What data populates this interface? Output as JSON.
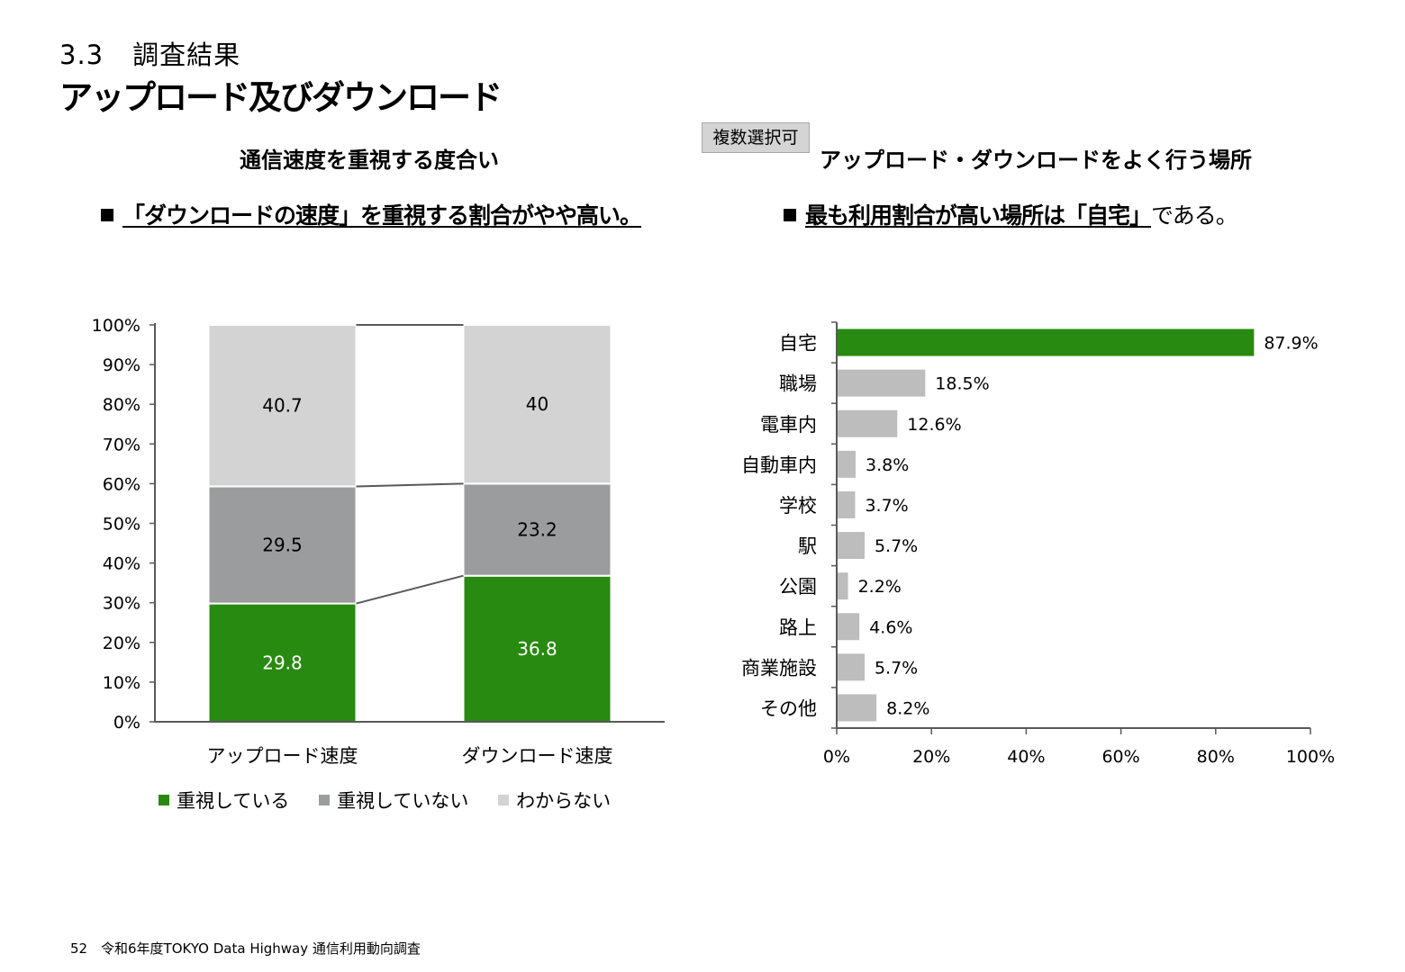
{
  "header": {
    "section_number": "3.3",
    "section_title": "調査結果",
    "page_title": "アップロード及びダウンロード"
  },
  "badge": {
    "label": "複数選択可"
  },
  "left_panel": {
    "title": "通信速度を重視する度合い",
    "message": {
      "underlined": "「ダウンロードの速度」を重視する割合がやや高い。"
    }
  },
  "right_panel": {
    "title": "アップロード・ダウンロードをよく行う場所",
    "message": {
      "underlined": "最も利用割合が高い場所は「自宅」",
      "plain": "である。"
    }
  },
  "legend": {
    "items": [
      "重視している",
      "重視していない",
      "わからない"
    ]
  },
  "footer": {
    "page_number": "52",
    "text": "令和6年度TOKYO Data Highway 通信利用動向調査"
  },
  "chart_data": [
    {
      "type": "bar",
      "stacked": true,
      "categories": [
        "アップロード速度",
        "ダウンロード速度"
      ],
      "series": [
        {
          "name": "重視している",
          "values": [
            29.8,
            36.8
          ],
          "labels": [
            "29.8",
            "36.8"
          ],
          "color": "#288a10"
        },
        {
          "name": "重視していない",
          "values": [
            29.5,
            23.2
          ],
          "labels": [
            "29.5",
            "23.2"
          ],
          "color": "#9b9c9d"
        },
        {
          "name": "わからない",
          "values": [
            40.7,
            40
          ],
          "labels": [
            "40.7",
            "40"
          ],
          "color": "#d3d3d3"
        }
      ],
      "ylim": [
        0,
        100
      ],
      "yticks": [
        "0%",
        "10%",
        "20%",
        "30%",
        "40%",
        "50%",
        "60%",
        "70%",
        "80%",
        "90%",
        "100%"
      ],
      "series_lines": true,
      "legend": "bottom"
    },
    {
      "type": "bar",
      "orientation": "horizontal",
      "categories": [
        "自宅",
        "職場",
        "電車内",
        "自動車内",
        "学校",
        "駅",
        "公園",
        "路上",
        "商業施設",
        "その他"
      ],
      "values": [
        87.9,
        18.5,
        12.6,
        3.8,
        3.7,
        5.7,
        2.2,
        4.6,
        5.7,
        8.2
      ],
      "labels": [
        "87.9%",
        "18.5%",
        "12.6%",
        "3.8%",
        "3.7%",
        "5.7%",
        "2.2%",
        "4.6%",
        "5.7%",
        "8.2%"
      ],
      "highlight_color": "#288a10",
      "bar_color": "#bdbdbd",
      "xlim": [
        0,
        100
      ],
      "xticks": [
        "0%",
        "20%",
        "40%",
        "60%",
        "80%",
        "100%"
      ]
    }
  ]
}
